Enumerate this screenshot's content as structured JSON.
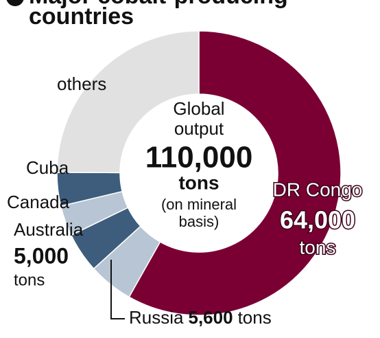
{
  "chart_data": {
    "type": "pie",
    "title_lines": [
      "Major cobalt-producing",
      "countries"
    ],
    "center_lines": [
      "Global",
      "output"
    ],
    "total": {
      "value": 110000,
      "label": "110,000"
    },
    "unit": "tons",
    "center_note": [
      "(on mineral",
      "basis)"
    ],
    "categories": [
      "DR Congo",
      "Russia",
      "Australia",
      "Canada",
      "Cuba",
      "others"
    ],
    "values": [
      64000,
      5600,
      5000,
      3800,
      4200,
      27400
    ],
    "value_labels": [
      "64,000",
      "5,600",
      "5,000",
      null,
      null,
      null
    ],
    "colors": [
      "#7a0034",
      "#b7c5d4",
      "#3e5d7d",
      "#b7c5d4",
      "#3e5d7d",
      "#e1e1e1"
    ]
  }
}
